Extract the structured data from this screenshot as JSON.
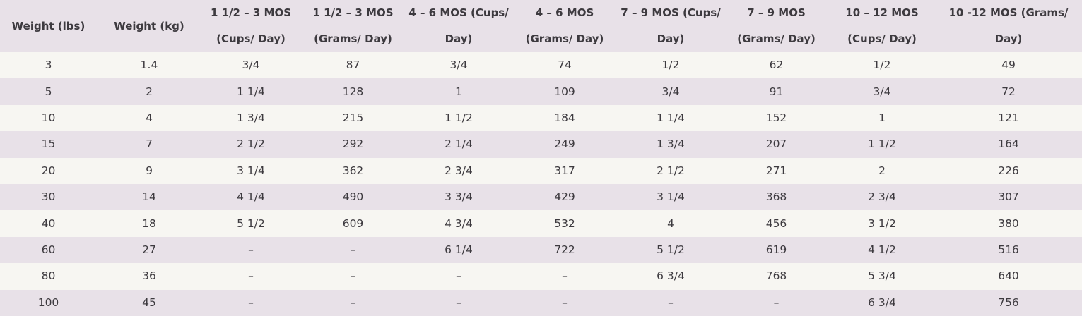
{
  "table": {
    "header": [
      "Weight (lbs)",
      "Weight (kg)",
      "1 1/2 – 3 MOS (Cups/ Day)",
      "1 1/2 – 3 MOS (Grams/ Day)",
      "4 – 6 MOS (Cups/ Day)",
      "4 – 6 MOS (Grams/ Day)",
      "7 – 9 MOS (Cups/ Day)",
      "7 – 9 MOS (Grams/ Day)",
      "10 – 12 MOS (Cups/ Day)",
      "10 -12 MOS (Grams/ Day)"
    ],
    "rows": [
      [
        "3",
        "1.4",
        "3/4",
        "87",
        "3/4",
        "74",
        "1/2",
        "62",
        "1/2",
        "49"
      ],
      [
        "5",
        "2",
        "1 1/4",
        "128",
        "1",
        "109",
        "3/4",
        "91",
        "3/4",
        "72"
      ],
      [
        "10",
        "4",
        "1 3/4",
        "215",
        "1 1/2",
        "184",
        "1 1/4",
        "152",
        "1",
        "121"
      ],
      [
        "15",
        "7",
        "2 1/2",
        "292",
        "2 1/4",
        "249",
        "1 3/4",
        "207",
        "1 1/2",
        "164"
      ],
      [
        "20",
        "9",
        "3 1/4",
        "362",
        "2 3/4",
        "317",
        "2 1/2",
        "271",
        "2",
        "226"
      ],
      [
        "30",
        "14",
        "4 1/4",
        "490",
        "3 3/4",
        "429",
        "3 1/4",
        "368",
        "2 3/4",
        "307"
      ],
      [
        "40",
        "18",
        "5 1/2",
        "609",
        "4 3/4",
        "532",
        "4",
        "456",
        "3 1/2",
        "380"
      ],
      [
        "60",
        "27",
        "–",
        "–",
        "6 1/4",
        "722",
        "5 1/2",
        "619",
        "4 1/2",
        "516"
      ],
      [
        "80",
        "36",
        "–",
        "–",
        "–",
        "–",
        "6 3/4",
        "768",
        "5 3/4",
        "640"
      ],
      [
        "100",
        "45",
        "–",
        "–",
        "–",
        "–",
        "–",
        "–",
        "6 3/4",
        "756"
      ]
    ]
  }
}
